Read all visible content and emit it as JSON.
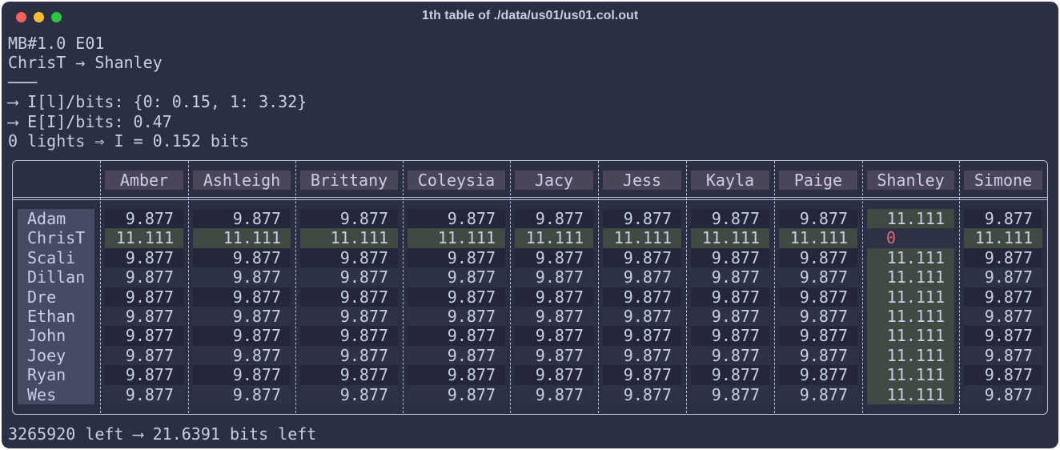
{
  "window": {
    "title": "1th table of ./data/us01/us01.col.out"
  },
  "header": {
    "lines": [
      "MB#1.0 E01",
      "ChrisT → Shanley",
      "───",
      "⟶ I[l]/bits: {0: 0.15, 1: 3.32}",
      "⟶ E[I]/bits: 0.47",
      "0 lights ⇒ I = 0.152 bits"
    ]
  },
  "table": {
    "columns": [
      "Amber",
      "Ashleigh",
      "Brittany",
      "Coleysia",
      "Jacy",
      "Jess",
      "Kayla",
      "Paige",
      "Shanley",
      "Simone"
    ],
    "rows": [
      {
        "label": "Adam",
        "cells": [
          "9.877",
          "9.877",
          "9.877",
          "9.877",
          "9.877",
          "9.877",
          "9.877",
          "9.877",
          "11.111",
          "9.877"
        ]
      },
      {
        "label": "ChrisT",
        "cells": [
          "11.111",
          "11.111",
          "11.111",
          "11.111",
          "11.111",
          "11.111",
          "11.111",
          "11.111",
          "0",
          "11.111"
        ]
      },
      {
        "label": "Scali",
        "cells": [
          "9.877",
          "9.877",
          "9.877",
          "9.877",
          "9.877",
          "9.877",
          "9.877",
          "9.877",
          "11.111",
          "9.877"
        ]
      },
      {
        "label": "Dillan",
        "cells": [
          "9.877",
          "9.877",
          "9.877",
          "9.877",
          "9.877",
          "9.877",
          "9.877",
          "9.877",
          "11.111",
          "9.877"
        ]
      },
      {
        "label": "Dre",
        "cells": [
          "9.877",
          "9.877",
          "9.877",
          "9.877",
          "9.877",
          "9.877",
          "9.877",
          "9.877",
          "11.111",
          "9.877"
        ]
      },
      {
        "label": "Ethan",
        "cells": [
          "9.877",
          "9.877",
          "9.877",
          "9.877",
          "9.877",
          "9.877",
          "9.877",
          "9.877",
          "11.111",
          "9.877"
        ]
      },
      {
        "label": "John",
        "cells": [
          "9.877",
          "9.877",
          "9.877",
          "9.877",
          "9.877",
          "9.877",
          "9.877",
          "9.877",
          "11.111",
          "9.877"
        ]
      },
      {
        "label": "Joey",
        "cells": [
          "9.877",
          "9.877",
          "9.877",
          "9.877",
          "9.877",
          "9.877",
          "9.877",
          "9.877",
          "11.111",
          "9.877"
        ]
      },
      {
        "label": "Ryan",
        "cells": [
          "9.877",
          "9.877",
          "9.877",
          "9.877",
          "9.877",
          "9.877",
          "9.877",
          "9.877",
          "11.111",
          "9.877"
        ]
      },
      {
        "label": "Wes",
        "cells": [
          "9.877",
          "9.877",
          "9.877",
          "9.877",
          "9.877",
          "9.877",
          "9.877",
          "9.877",
          "11.111",
          "9.877"
        ]
      }
    ]
  },
  "footer": {
    "text": "3265920 left ⟶ 21.6391 bits left"
  }
}
